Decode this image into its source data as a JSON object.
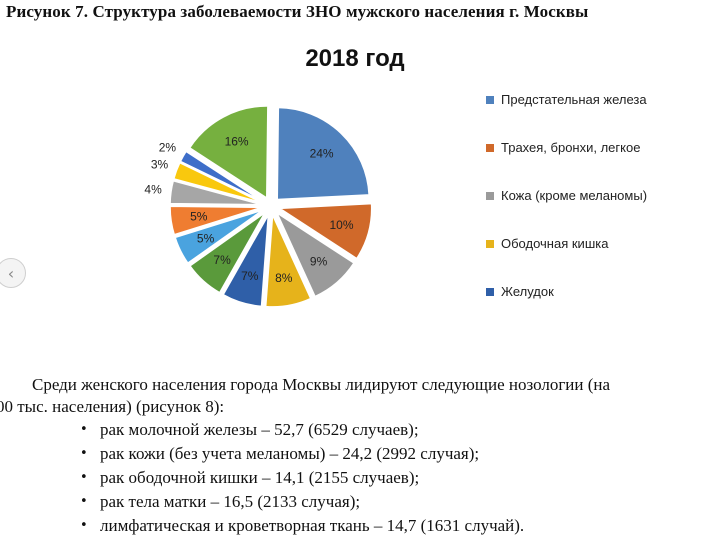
{
  "caption": "Рисунок 7. Структура заболеваемости ЗНО мужского населения г. Москвы",
  "chart_data": {
    "type": "pie",
    "title": "2018 год",
    "slices": [
      {
        "label": "Предстательная железа",
        "value": 24,
        "text": "24%",
        "color": "#4f81bd"
      },
      {
        "label": "Трахея, бронхи, легкое",
        "value": 10,
        "text": "10%",
        "color": "#d0692a"
      },
      {
        "label": "Кожа (кроме меланомы)",
        "value": 9,
        "text": "9%",
        "color": "#9a9a9a"
      },
      {
        "label": "Ободочная кишка",
        "value": 8,
        "text": "8%",
        "color": "#e6b31b"
      },
      {
        "label": "Желудок",
        "value": 7,
        "text": "7%",
        "color": "#2f5fa8"
      },
      {
        "label": "",
        "value": 7,
        "text": "7%",
        "color": "#5a9a3b"
      },
      {
        "label": "",
        "value": 5,
        "text": "5%",
        "color": "#4aa3df"
      },
      {
        "label": "",
        "value": 5,
        "text": "5%",
        "color": "#ef7d31"
      },
      {
        "label": "",
        "value": 4,
        "text": "4%",
        "color": "#a6a6a6"
      },
      {
        "label": "",
        "value": 3,
        "text": "3%",
        "color": "#f9c80e"
      },
      {
        "label": "",
        "value": 2,
        "text": "2%",
        "color": "#3e6ec9"
      },
      {
        "label": "",
        "value": 16,
        "text": "16%",
        "color": "#76b03f"
      }
    ],
    "legend_placement": "right"
  },
  "paragraph": {
    "line1": "Среди женского населения города Москвы лидируют следующие нозологии (на",
    "line2": "00 тыс. населения) (рисунок 8):"
  },
  "bullets": [
    "рак молочной железы – 52,7 (6529 случаев);",
    "рак кожи (без учета меланомы) – 24,2 (2992 случая);",
    "рак ободочной кишки – 14,1 (2155 случаев);",
    "рак тела матки – 16,5 (2133 случая);",
    "лимфатическая и кроветворная ткань – 14,7 (1631 случай)."
  ],
  "bullet_glyph": "•",
  "scroll_glyph": "‹"
}
